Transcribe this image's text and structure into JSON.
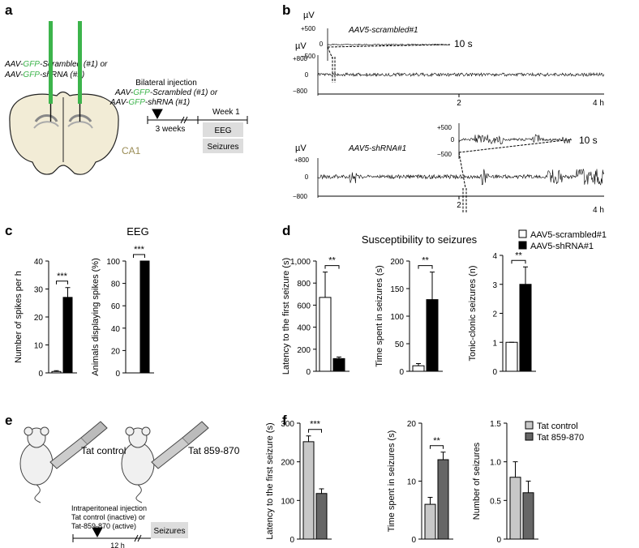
{
  "panel_labels": [
    "a",
    "b",
    "c",
    "d",
    "e",
    "f"
  ],
  "panel_a": {
    "construct_lines": [
      [
        "AAV-",
        "GFP",
        "-Scrambled (#1) or"
      ],
      [
        "AAV-",
        "GFP",
        "-shRNA (#1)"
      ]
    ],
    "region": "CA1",
    "timeline": {
      "title": "Bilateral injection",
      "construct_lines": [
        [
          "AAV-",
          "GFP",
          "-Scrambled (#1) or"
        ],
        [
          "AAV-",
          "GFP",
          "-shRNA (#1)"
        ]
      ],
      "week": "Week 1",
      "interval": "3 weeks",
      "boxes": [
        "EEG",
        "Seizures"
      ]
    }
  },
  "panel_b": {
    "traces": [
      {
        "label": "AAV5-scrambled#1",
        "unit": "µV",
        "ticks": [
          "+800",
          "0",
          "−800"
        ],
        "time_ticks": [
          "2",
          "4 h"
        ],
        "inset": {
          "unit": "µV",
          "ticks": [
            "+500",
            "0",
            "−500"
          ],
          "scale": "10 s"
        }
      },
      {
        "label": "AAV5-shRNA#1",
        "unit": "µV",
        "ticks": [
          "+800",
          "0",
          "−800"
        ],
        "time_ticks": [
          "2",
          "4 h"
        ],
        "inset": {
          "ticks": [
            "+500",
            "0",
            "−500"
          ],
          "scale": "10 s"
        }
      }
    ]
  },
  "panel_c": {
    "title": "EEG"
  },
  "panel_d": {
    "title": "Susceptibility to seizures"
  },
  "panel_e": {
    "groups": [
      "Tat control",
      "Tat 859-870"
    ],
    "protocol": [
      "Intraperitoneal injection",
      "Tat control (inactive) or",
      "Tat-859-870 (active)"
    ],
    "interval": "12 h",
    "box": "Seizures"
  },
  "chart_data": [
    {
      "type": "bar",
      "ylabel": "Number of spikes per h",
      "ylim": [
        0,
        40
      ],
      "yticks": [
        0,
        10,
        20,
        30,
        40
      ],
      "annotation": "***",
      "series": [
        {
          "color": "#ffffff",
          "values": [
            0.5
          ],
          "errors": [
            0.3
          ]
        },
        {
          "color": "#000000",
          "values": [
            27
          ],
          "errors": [
            3.5
          ]
        }
      ]
    },
    {
      "type": "bar",
      "ylabel": "Animals displaying spikes (%)",
      "ylim": [
        0,
        100
      ],
      "yticks": [
        0,
        20,
        40,
        60,
        80,
        100
      ],
      "annotation": "***",
      "series": [
        {
          "color": "#ffffff",
          "values": [
            0
          ],
          "errors": [
            0
          ]
        },
        {
          "color": "#000000",
          "values": [
            100
          ],
          "errors": [
            0
          ]
        }
      ]
    },
    {
      "type": "bar",
      "ylabel": "Latency to the first seizure (s)",
      "ylim": [
        0,
        1000
      ],
      "yticks": [
        0,
        200,
        400,
        600,
        800,
        {
          "value": 1000,
          "label": "1,000"
        }
      ],
      "annotation": "**",
      "series": [
        {
          "name": "AAV5-scrambled#1",
          "color": "#ffffff",
          "values": [
            670
          ],
          "errors": [
            230
          ]
        },
        {
          "name": "AAV5-shRNA#1",
          "color": "#000000",
          "values": [
            115
          ],
          "errors": [
            15
          ]
        }
      ]
    },
    {
      "type": "bar",
      "ylabel": "Time spent in seizures (s)",
      "ylim": [
        0,
        200
      ],
      "yticks": [
        0,
        50,
        100,
        150,
        200
      ],
      "annotation": "**",
      "series": [
        {
          "color": "#ffffff",
          "values": [
            10
          ],
          "errors": [
            4
          ]
        },
        {
          "color": "#000000",
          "values": [
            130
          ],
          "errors": [
            50
          ]
        }
      ]
    },
    {
      "type": "bar",
      "ylabel": "Tonic-clonic seizures (n)",
      "ylim": [
        0,
        4
      ],
      "yticks": [
        0,
        1,
        2,
        3,
        4
      ],
      "annotation": "**",
      "series": [
        {
          "color": "#ffffff",
          "values": [
            1
          ],
          "errors": [
            0
          ]
        },
        {
          "color": "#000000",
          "values": [
            3
          ],
          "errors": [
            0.6
          ]
        }
      ]
    },
    {
      "type": "bar",
      "ylabel": "Latency to the  first seizure (s)",
      "ylim": [
        0,
        300
      ],
      "yticks": [
        0,
        100,
        200,
        300
      ],
      "annotation": "***",
      "series": [
        {
          "name": "Tat control",
          "color": "#c8c8c8",
          "values": [
            252
          ],
          "errors": [
            15
          ]
        },
        {
          "name": "Tat 859-870",
          "color": "#666666",
          "values": [
            118
          ],
          "errors": [
            12
          ]
        }
      ]
    },
    {
      "type": "bar",
      "ylabel": "Time spent in seizures (s)",
      "ylim": [
        0,
        20
      ],
      "yticks": [
        0,
        10,
        20
      ],
      "annotation": "**",
      "series": [
        {
          "color": "#c8c8c8",
          "values": [
            6
          ],
          "errors": [
            1.2
          ]
        },
        {
          "color": "#666666",
          "values": [
            13.7
          ],
          "errors": [
            1.3
          ]
        }
      ]
    },
    {
      "type": "bar",
      "ylabel": "Number of seizures",
      "ylim": [
        0,
        1.5
      ],
      "yticks": [
        0,
        0.5,
        {
          "value": 1,
          "label": "1.0"
        },
        1.5
      ],
      "series": [
        {
          "color": "#c8c8c8",
          "values": [
            0.8
          ],
          "errors": [
            0.2
          ]
        },
        {
          "color": "#666666",
          "values": [
            0.6
          ],
          "errors": [
            0.15
          ]
        }
      ]
    }
  ]
}
